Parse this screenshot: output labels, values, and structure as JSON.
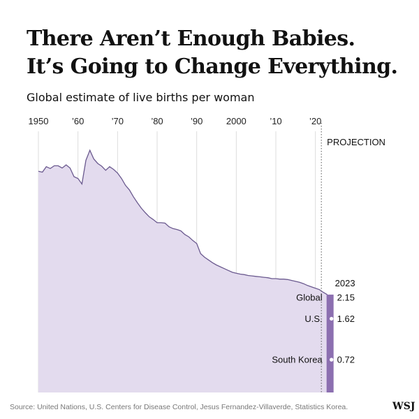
{
  "title_line1": "There Aren’t Enough Babies.",
  "title_line2": "It’s Going to Change Everything.",
  "subtitle": "Global estimate of live births per woman",
  "source": "Source: United Nations, U.S. Centers for Disease Control, Jesus Fernandez-Villaverde, Statistics Korea.",
  "logo": "WSJ",
  "colors": {
    "area": "#e3dbee",
    "line": "#6b5a8f",
    "projection": "#8c6fb0",
    "grid": "#dddddd"
  },
  "chart_data": {
    "type": "area",
    "xlabel": "",
    "ylabel": "",
    "x_tick_labels": [
      "1950",
      "’60",
      "’70",
      "’80",
      "’90",
      "2000",
      "’10",
      "’20"
    ],
    "x_tick_values": [
      1950,
      1960,
      1970,
      1980,
      1990,
      2000,
      2010,
      2020
    ],
    "xlim": [
      1950,
      2025
    ],
    "ylim": [
      0,
      5.4
    ],
    "projection_label": "PROJECTION",
    "projection_start": 2021.5,
    "year_label": "2023",
    "series": [
      {
        "x": [
          1950,
          1951,
          1952,
          1953,
          1954,
          1955,
          1956,
          1957,
          1958,
          1959,
          1960,
          1961,
          1962,
          1963,
          1964,
          1965,
          1966,
          1967,
          1968,
          1969,
          1970,
          1971,
          1972,
          1973,
          1974,
          1975,
          1976,
          1977,
          1978,
          1979,
          1980,
          1981,
          1982,
          1983,
          1984,
          1985,
          1986,
          1987,
          1988,
          1989,
          1990,
          1991,
          1992,
          1993,
          1994,
          1995,
          1996,
          1997,
          1998,
          1999,
          2000,
          2001,
          2002,
          2003,
          2004,
          2005,
          2006,
          2007,
          2008,
          2009,
          2010,
          2011,
          2012,
          2013,
          2014,
          2015,
          2016,
          2017,
          2018,
          2019,
          2020,
          2021,
          2022,
          2023
        ],
        "y": [
          4.86,
          4.84,
          4.96,
          4.92,
          4.98,
          4.98,
          4.93,
          5.0,
          4.93,
          4.74,
          4.7,
          4.58,
          5.1,
          5.32,
          5.13,
          5.03,
          4.97,
          4.88,
          4.96,
          4.9,
          4.82,
          4.7,
          4.55,
          4.45,
          4.3,
          4.17,
          4.05,
          3.95,
          3.86,
          3.8,
          3.73,
          3.73,
          3.72,
          3.64,
          3.6,
          3.58,
          3.55,
          3.47,
          3.42,
          3.34,
          3.27,
          3.05,
          2.97,
          2.91,
          2.85,
          2.8,
          2.76,
          2.72,
          2.68,
          2.64,
          2.62,
          2.6,
          2.59,
          2.57,
          2.56,
          2.55,
          2.54,
          2.53,
          2.52,
          2.5,
          2.5,
          2.49,
          2.49,
          2.48,
          2.46,
          2.44,
          2.42,
          2.39,
          2.35,
          2.32,
          2.29,
          2.26,
          2.2,
          2.15
        ]
      }
    ],
    "projection_markers": [
      {
        "label": "Global",
        "value": 2.15,
        "value_label": "2.15"
      },
      {
        "label": "U.S.",
        "value": 1.62,
        "value_label": "1.62"
      },
      {
        "label": "South Korea",
        "value": 0.72,
        "value_label": "0.72"
      }
    ]
  }
}
